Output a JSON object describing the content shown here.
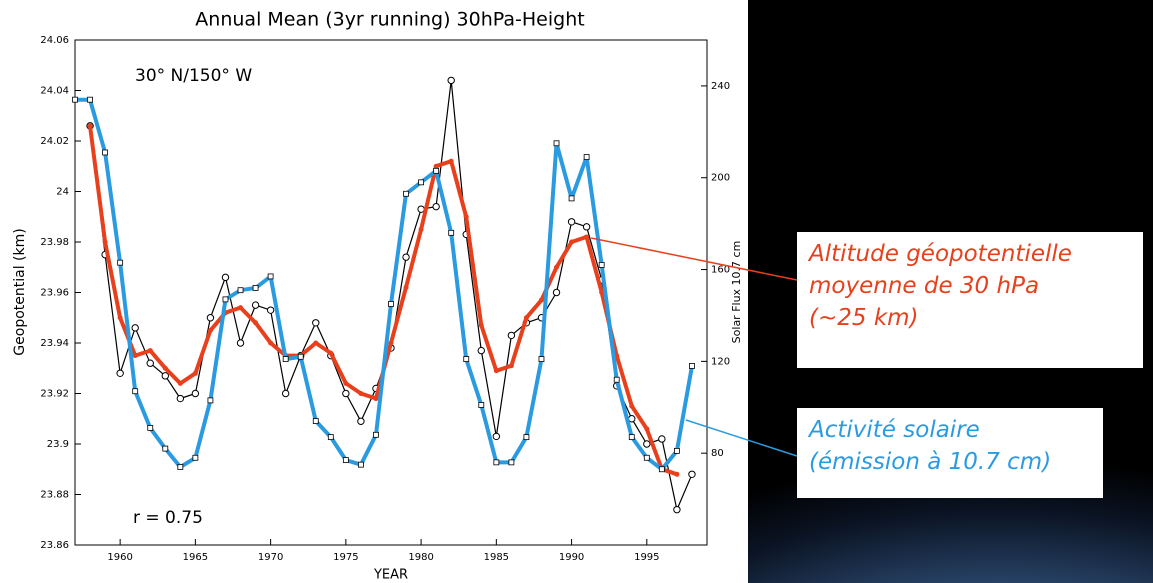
{
  "chart_data": {
    "type": "line",
    "title": "Annual Mean (3yr running) 30hPa-Height",
    "location_label": "30° N/150° W",
    "correlation_label": "r = 0.75",
    "xlabel": "YEAR",
    "ylabel": "Geopotential (km)",
    "y2label": "Solar Flux 10.7 cm",
    "x": [
      1957,
      1958,
      1959,
      1960,
      1961,
      1962,
      1963,
      1964,
      1965,
      1966,
      1967,
      1968,
      1969,
      1970,
      1971,
      1972,
      1973,
      1974,
      1975,
      1976,
      1977,
      1978,
      1979,
      1980,
      1981,
      1982,
      1983,
      1984,
      1985,
      1986,
      1987,
      1988,
      1989,
      1990,
      1991,
      1992,
      1993,
      1994,
      1995,
      1996,
      1997,
      1998
    ],
    "xlim": [
      1957,
      1999
    ],
    "xticks": [
      1960,
      1965,
      1970,
      1975,
      1980,
      1985,
      1990,
      1995
    ],
    "ylim": [
      23.86,
      24.06
    ],
    "yticks": [
      23.86,
      23.88,
      23.9,
      23.92,
      23.94,
      23.96,
      23.98,
      24,
      24.02,
      24.04,
      24.06
    ],
    "y2lim": [
      40,
      260
    ],
    "y2ticks": [
      80,
      120,
      160,
      200,
      240
    ],
    "series": [
      {
        "name": "30hPa height",
        "color": "#000000",
        "values": [
          null,
          24.026,
          23.975,
          23.928,
          23.946,
          23.932,
          23.927,
          23.918,
          23.92,
          23.95,
          23.966,
          23.94,
          23.955,
          23.953,
          23.92,
          23.935,
          23.948,
          23.935,
          23.92,
          23.909,
          23.922,
          23.938,
          23.974,
          23.993,
          23.994,
          24.044,
          23.983,
          23.937,
          23.903,
          23.943,
          23.948,
          23.95,
          23.96,
          23.988,
          23.986,
          23.965,
          23.923,
          23.91,
          23.9,
          23.902,
          23.874,
          23.888
        ]
      },
      {
        "name": "30hPa height (3yr running)",
        "color": "#e8401c",
        "values": [
          null,
          24.026,
          23.98,
          23.95,
          23.935,
          23.937,
          23.93,
          23.924,
          23.928,
          23.945,
          23.952,
          23.954,
          23.948,
          23.94,
          23.935,
          23.935,
          23.94,
          23.936,
          23.924,
          23.92,
          23.918,
          23.94,
          23.962,
          23.985,
          24.01,
          24.012,
          23.99,
          23.947,
          23.929,
          23.931,
          23.95,
          23.957,
          23.97,
          23.98,
          23.982,
          23.96,
          23.935,
          23.915,
          23.906,
          23.89,
          23.888,
          null
        ]
      },
      {
        "name": "Solar flux 10.7 cm",
        "color": "#2a9be0",
        "axis": "y2",
        "values": [
          234,
          234,
          211,
          163,
          107,
          91,
          82,
          74,
          78,
          103,
          147,
          151,
          152,
          157,
          121,
          122,
          94,
          87,
          77,
          75,
          88,
          145,
          193,
          198,
          203,
          176,
          121,
          101,
          76,
          76,
          87,
          121,
          215,
          191,
          209,
          162,
          112,
          87,
          78,
          73,
          81,
          118
        ]
      }
    ],
    "callouts": [
      {
        "lines": [
          "Altitude géopotentielle",
          "moyenne de 30 hPa",
          "(~25 km)"
        ],
        "color": "#e8401c"
      },
      {
        "lines": [
          "Activité solaire",
          "(émission à 10.7 cm)"
        ],
        "color": "#2a9be0"
      }
    ]
  }
}
